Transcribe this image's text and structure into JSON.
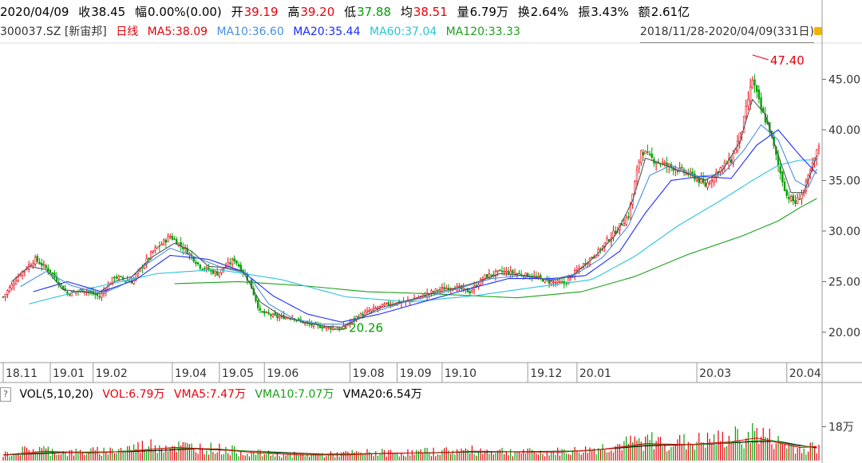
{
  "stock": {
    "date": "2020/04/09",
    "close": {
      "label": "收",
      "value": "38.45"
    },
    "change": {
      "label": "幅",
      "value": "0.00%(0.00)"
    },
    "open": {
      "label": "开",
      "value": "39.19"
    },
    "high": {
      "label": "高",
      "value": "39.20"
    },
    "low": {
      "label": "低",
      "value": "37.88"
    },
    "avg": {
      "label": "均",
      "value": "38.51"
    },
    "volume": {
      "label": "量",
      "value": "6.79万"
    },
    "turnover": {
      "label": "换",
      "value": "2.64%"
    },
    "amplitude": {
      "label": "振",
      "value": "3.43%"
    },
    "amount": {
      "label": "额",
      "value": "2.61亿"
    },
    "code": "300037.SZ [新宙邦]",
    "period": "日线",
    "ma5": "MA5:38.09",
    "ma10": "MA10:36.60",
    "ma20": "MA20:35.44",
    "ma60": "MA60:37.04",
    "ma120": "MA120:33.33",
    "range": "2018/11/28-2020/04/09(331日)"
  },
  "volume_panel": {
    "question": "?",
    "title": "VOL(5,10,20)",
    "vol": "VOL:6.79万",
    "vma5": "VMA5:7.47万",
    "vma10": "VMA10:7.07万",
    "vma20": "VMA20:6.54万"
  },
  "colors": {
    "up": "#e8000b",
    "down": "#00a000",
    "ma5": "#555555",
    "ma10": "#4a8fe0",
    "ma20": "#1a2cff",
    "ma60": "#29c4d9",
    "ma120": "#1ba01b"
  },
  "chart_data": {
    "type": "candlestick",
    "price_axis": {
      "ticks": [
        20.0,
        25.0,
        30.0,
        35.0,
        40.0,
        45.0
      ],
      "tick_labels": [
        "20.00",
        "25.00",
        "30.00",
        "35.00",
        "40.00",
        "45.00"
      ],
      "range": [
        17.0,
        48.5
      ]
    },
    "volume_axis": {
      "tick": 18,
      "tick_label": "18万",
      "range": [
        0,
        33
      ]
    },
    "date_labels": [
      "18.11",
      "19.01",
      "19.02",
      "19.04",
      "19.05",
      "19.06",
      "19.08",
      "19.09",
      "19.10",
      "19.12",
      "20.01",
      "20.03",
      "20.04"
    ],
    "annotations": [
      {
        "text": "47.40",
        "value": 47.4,
        "type": "high"
      },
      {
        "text": "20.26",
        "value": 20.26,
        "type": "low"
      }
    ],
    "close_path": [
      [
        0,
        23.5
      ],
      [
        8,
        25.8
      ],
      [
        15,
        27.2
      ],
      [
        22,
        26.0
      ],
      [
        30,
        23.8
      ],
      [
        38,
        24.2
      ],
      [
        45,
        23.5
      ],
      [
        52,
        25.5
      ],
      [
        60,
        25.0
      ],
      [
        70,
        28.0
      ],
      [
        78,
        29.5
      ],
      [
        85,
        28.2
      ],
      [
        92,
        26.5
      ],
      [
        100,
        25.8
      ],
      [
        108,
        27.2
      ],
      [
        115,
        25.0
      ],
      [
        120,
        22.0
      ],
      [
        128,
        21.5
      ],
      [
        135,
        21.5
      ],
      [
        142,
        20.8
      ],
      [
        150,
        20.5
      ],
      [
        158,
        20.3
      ],
      [
        165,
        21.5
      ],
      [
        172,
        22.2
      ],
      [
        180,
        22.8
      ],
      [
        188,
        23.0
      ],
      [
        195,
        23.5
      ],
      [
        203,
        24.2
      ],
      [
        210,
        24.5
      ],
      [
        218,
        24.0
      ],
      [
        225,
        25.5
      ],
      [
        233,
        26.0
      ],
      [
        240,
        25.8
      ],
      [
        248,
        25.5
      ],
      [
        255,
        25.0
      ],
      [
        262,
        24.8
      ],
      [
        270,
        26.5
      ],
      [
        278,
        28.0
      ],
      [
        286,
        30.0
      ],
      [
        292,
        31.5
      ],
      [
        298,
        38.0
      ],
      [
        304,
        37.0
      ],
      [
        310,
        36.5
      ],
      [
        316,
        36.0
      ],
      [
        322,
        35.5
      ],
      [
        328,
        34.5
      ],
      [
        334,
        36.0
      ],
      [
        340,
        37.0
      ],
      [
        345,
        40.0
      ],
      [
        350,
        45.0
      ],
      [
        354,
        42.0
      ],
      [
        358,
        40.0
      ],
      [
        362,
        36.5
      ],
      [
        366,
        33.5
      ],
      [
        370,
        32.8
      ],
      [
        374,
        34.0
      ],
      [
        378,
        36.5
      ],
      [
        381,
        38.45
      ]
    ],
    "ma5": [
      [
        4,
        25.0
      ],
      [
        12,
        26.5
      ],
      [
        20,
        26.2
      ],
      [
        28,
        24.2
      ],
      [
        36,
        24.0
      ],
      [
        44,
        23.8
      ],
      [
        52,
        25.0
      ],
      [
        60,
        25.5
      ],
      [
        70,
        27.5
      ],
      [
        80,
        28.8
      ],
      [
        88,
        28.0
      ],
      [
        96,
        26.5
      ],
      [
        104,
        26.4
      ],
      [
        112,
        26.0
      ],
      [
        120,
        23.0
      ],
      [
        130,
        21.6
      ],
      [
        140,
        21.0
      ],
      [
        150,
        20.6
      ],
      [
        158,
        20.5
      ],
      [
        166,
        21.3
      ],
      [
        176,
        22.4
      ],
      [
        188,
        23.1
      ],
      [
        200,
        23.8
      ],
      [
        212,
        24.4
      ],
      [
        222,
        25.0
      ],
      [
        232,
        25.8
      ],
      [
        244,
        25.6
      ],
      [
        256,
        25.1
      ],
      [
        266,
        25.6
      ],
      [
        276,
        27.4
      ],
      [
        286,
        29.6
      ],
      [
        294,
        33.0
      ],
      [
        300,
        37.2
      ],
      [
        308,
        36.6
      ],
      [
        318,
        35.8
      ],
      [
        328,
        35.0
      ],
      [
        336,
        36.0
      ],
      [
        344,
        38.8
      ],
      [
        350,
        43.0
      ],
      [
        356,
        41.5
      ],
      [
        362,
        37.5
      ],
      [
        368,
        33.8
      ],
      [
        374,
        33.8
      ],
      [
        381,
        38.09
      ]
    ],
    "ma10": [
      [
        8,
        24.5
      ],
      [
        20,
        26.0
      ],
      [
        32,
        24.6
      ],
      [
        46,
        23.8
      ],
      [
        56,
        24.7
      ],
      [
        66,
        26.6
      ],
      [
        78,
        28.3
      ],
      [
        90,
        27.4
      ],
      [
        102,
        26.4
      ],
      [
        114,
        25.8
      ],
      [
        124,
        22.8
      ],
      [
        136,
        21.3
      ],
      [
        148,
        20.8
      ],
      [
        160,
        20.8
      ],
      [
        172,
        21.9
      ],
      [
        186,
        22.9
      ],
      [
        200,
        23.6
      ],
      [
        214,
        24.4
      ],
      [
        228,
        25.3
      ],
      [
        242,
        25.6
      ],
      [
        256,
        25.2
      ],
      [
        268,
        25.8
      ],
      [
        280,
        27.4
      ],
      [
        292,
        30.5
      ],
      [
        302,
        35.5
      ],
      [
        312,
        36.5
      ],
      [
        324,
        35.4
      ],
      [
        336,
        35.6
      ],
      [
        346,
        38.0
      ],
      [
        354,
        40.5
      ],
      [
        362,
        39.0
      ],
      [
        370,
        35.0
      ],
      [
        376,
        34.3
      ],
      [
        381,
        36.6
      ]
    ],
    "ma20": [
      [
        14,
        24.0
      ],
      [
        30,
        25.0
      ],
      [
        46,
        24.0
      ],
      [
        62,
        25.2
      ],
      [
        78,
        27.6
      ],
      [
        96,
        27.2
      ],
      [
        112,
        26.0
      ],
      [
        126,
        23.6
      ],
      [
        142,
        21.8
      ],
      [
        158,
        21.0
      ],
      [
        176,
        21.8
      ],
      [
        196,
        23.0
      ],
      [
        216,
        24.2
      ],
      [
        236,
        25.3
      ],
      [
        256,
        25.3
      ],
      [
        272,
        25.6
      ],
      [
        288,
        28.0
      ],
      [
        300,
        31.8
      ],
      [
        312,
        35.0
      ],
      [
        326,
        35.4
      ],
      [
        340,
        35.2
      ],
      [
        352,
        38.5
      ],
      [
        362,
        40.0
      ],
      [
        372,
        37.5
      ],
      [
        381,
        35.44
      ]
    ],
    "ma60": [
      [
        12,
        22.8
      ],
      [
        40,
        24.3
      ],
      [
        72,
        25.8
      ],
      [
        100,
        26.2
      ],
      [
        130,
        25.2
      ],
      [
        160,
        23.5
      ],
      [
        190,
        23.0
      ],
      [
        220,
        23.6
      ],
      [
        250,
        24.5
      ],
      [
        275,
        25.2
      ],
      [
        295,
        27.5
      ],
      [
        315,
        30.5
      ],
      [
        335,
        33.0
      ],
      [
        350,
        35.0
      ],
      [
        362,
        36.5
      ],
      [
        372,
        37.0
      ],
      [
        381,
        37.04
      ]
    ],
    "ma120": [
      [
        80,
        24.8
      ],
      [
        110,
        25.0
      ],
      [
        140,
        24.6
      ],
      [
        170,
        24.0
      ],
      [
        200,
        23.8
      ],
      [
        240,
        23.4
      ],
      [
        270,
        24.0
      ],
      [
        295,
        25.5
      ],
      [
        320,
        27.7
      ],
      [
        345,
        29.5
      ],
      [
        362,
        31.0
      ],
      [
        372,
        32.3
      ],
      [
        381,
        33.33
      ]
    ],
    "volume_profile": [
      [
        0,
        3
      ],
      [
        15,
        6
      ],
      [
        30,
        4
      ],
      [
        50,
        5
      ],
      [
        70,
        8
      ],
      [
        85,
        7
      ],
      [
        100,
        6
      ],
      [
        115,
        4
      ],
      [
        130,
        3
      ],
      [
        150,
        3
      ],
      [
        170,
        4
      ],
      [
        190,
        4
      ],
      [
        210,
        5
      ],
      [
        230,
        5
      ],
      [
        250,
        4
      ],
      [
        270,
        5
      ],
      [
        290,
        8
      ],
      [
        300,
        10
      ],
      [
        320,
        9
      ],
      [
        340,
        11
      ],
      [
        352,
        14
      ],
      [
        362,
        9
      ],
      [
        372,
        6
      ],
      [
        381,
        6.79
      ]
    ],
    "vma5": [
      [
        0,
        3
      ],
      [
        20,
        5
      ],
      [
        40,
        4
      ],
      [
        60,
        5
      ],
      [
        80,
        7
      ],
      [
        100,
        6
      ],
      [
        120,
        4
      ],
      [
        140,
        3
      ],
      [
        160,
        3
      ],
      [
        180,
        4
      ],
      [
        200,
        4
      ],
      [
        220,
        5
      ],
      [
        240,
        4.6
      ],
      [
        260,
        4.5
      ],
      [
        280,
        6
      ],
      [
        300,
        9
      ],
      [
        320,
        8.5
      ],
      [
        340,
        10
      ],
      [
        352,
        12
      ],
      [
        362,
        9.5
      ],
      [
        372,
        7
      ],
      [
        381,
        7.47
      ]
    ],
    "vma10": [
      [
        0,
        3
      ],
      [
        25,
        4.6
      ],
      [
        50,
        4.5
      ],
      [
        75,
        6.5
      ],
      [
        100,
        6.2
      ],
      [
        125,
        4.2
      ],
      [
        150,
        3.2
      ],
      [
        175,
        3.8
      ],
      [
        200,
        4.2
      ],
      [
        225,
        4.8
      ],
      [
        250,
        4.6
      ],
      [
        275,
        5.4
      ],
      [
        300,
        8.5
      ],
      [
        325,
        8.6
      ],
      [
        345,
        10
      ],
      [
        358,
        11
      ],
      [
        370,
        8
      ],
      [
        381,
        7.07
      ]
    ],
    "vma20": [
      [
        0,
        3
      ],
      [
        30,
        4.3
      ],
      [
        60,
        4.8
      ],
      [
        90,
        6.2
      ],
      [
        120,
        4.8
      ],
      [
        150,
        3.4
      ],
      [
        180,
        3.8
      ],
      [
        210,
        4.4
      ],
      [
        240,
        4.7
      ],
      [
        270,
        5.1
      ],
      [
        300,
        7.8
      ],
      [
        330,
        8.8
      ],
      [
        350,
        10
      ],
      [
        362,
        10.2
      ],
      [
        372,
        8.2
      ],
      [
        381,
        6.54
      ]
    ],
    "up_days_markers_note": "candles colored red for up days, green for down days"
  }
}
